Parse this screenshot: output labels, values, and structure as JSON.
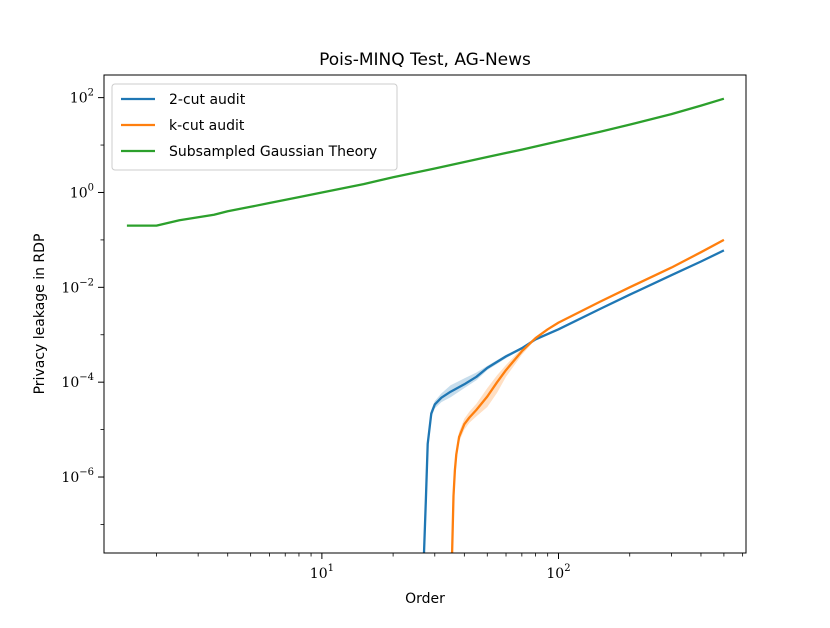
{
  "chart_data": {
    "type": "line",
    "title": "Pois-MINQ Test, AG-News",
    "xlabel": "Order",
    "ylabel": "Privacy leakage in RDP",
    "xscale": "log",
    "yscale": "log",
    "xlim": [
      1.2,
      620
    ],
    "ylim": [
      2.5e-08,
      300
    ],
    "xticks": [
      {
        "value": 10,
        "base": "10",
        "exp": "1"
      },
      {
        "value": 100,
        "base": "10",
        "exp": "2"
      }
    ],
    "yticks": [
      {
        "value": 1e-06,
        "base": "10",
        "exp": "−6"
      },
      {
        "value": 0.0001,
        "base": "10",
        "exp": "−4"
      },
      {
        "value": 0.01,
        "base": "10",
        "exp": "−2"
      },
      {
        "value": 1,
        "base": "10",
        "exp": "0"
      },
      {
        "value": 100,
        "base": "10",
        "exp": "2"
      }
    ],
    "legend_position": "top-left",
    "grid": false,
    "series": [
      {
        "name": "2-cut audit",
        "color": "#1f77b4",
        "x": [
          27,
          27.5,
          28,
          29,
          30,
          32,
          35,
          40,
          45,
          50,
          60,
          70,
          80,
          100,
          150,
          200,
          300,
          400,
          500
        ],
        "y": [
          2.5e-08,
          3e-07,
          5e-06,
          2.2e-05,
          3.4e-05,
          4.7e-05,
          6.3e-05,
          9e-05,
          0.00013,
          0.0002,
          0.00035,
          0.00052,
          0.0008,
          0.0013,
          0.0035,
          0.007,
          0.018,
          0.035,
          0.06
        ],
        "band_lower": [
          2.5e-08,
          2.5e-07,
          4e-06,
          1.8e-05,
          2.8e-05,
          3.8e-05,
          4.8e-05,
          7.5e-05,
          0.00011,
          0.00018,
          0.00032,
          0.00049,
          0.00075,
          0.00123,
          0.00335,
          0.0067,
          0.0173,
          0.0338,
          0.058
        ],
        "band_upper": [
          2.5e-08,
          4e-07,
          6e-06,
          2.6e-05,
          4e-05,
          5.8e-05,
          8.6e-05,
          0.00012,
          0.00016,
          0.00022,
          0.00038,
          0.00055,
          0.00085,
          0.00137,
          0.00365,
          0.0073,
          0.0187,
          0.0362,
          0.062
        ]
      },
      {
        "name": "k-cut audit",
        "color": "#ff7f0e",
        "x": [
          35.5,
          36,
          36.5,
          37,
          38,
          40,
          42,
          45,
          50,
          55,
          60,
          70,
          80,
          90,
          100,
          150,
          200,
          300,
          400,
          500
        ],
        "y": [
          2.5e-08,
          4e-07,
          1.4e-06,
          3e-06,
          7e-06,
          1.3e-05,
          1.8e-05,
          2.6e-05,
          5e-05,
          0.0001,
          0.00018,
          0.00045,
          0.00085,
          0.0013,
          0.0018,
          0.005,
          0.01,
          0.026,
          0.055,
          0.1
        ],
        "band_lower": [
          2.5e-08,
          3e-07,
          1.1e-06,
          2.4e-06,
          5.5e-06,
          1e-05,
          1.4e-05,
          1.9e-05,
          3e-05,
          6e-05,
          0.00013,
          0.00038,
          0.0008,
          0.00123,
          0.0017,
          0.0048,
          0.0097,
          0.0252,
          0.0535,
          0.097
        ],
        "band_upper": [
          2.5e-08,
          5e-07,
          1.8e-06,
          3.8e-06,
          9e-06,
          1.7e-05,
          2.4e-05,
          3.5e-05,
          7.5e-05,
          0.00014,
          0.00023,
          0.00052,
          0.0009,
          0.00137,
          0.0019,
          0.0052,
          0.0103,
          0.0268,
          0.0565,
          0.103
        ]
      },
      {
        "name": "Subsampled Gaussian Theory",
        "color": "#2ca02c",
        "x": [
          1.5,
          2,
          2.5,
          3,
          3.5,
          4,
          4.5,
          5,
          6,
          8,
          10,
          15,
          20,
          30,
          50,
          70,
          100,
          150,
          200,
          300,
          400,
          500
        ],
        "y": [
          0.2,
          0.2,
          0.26,
          0.3,
          0.34,
          0.4,
          0.45,
          0.5,
          0.6,
          0.8,
          1,
          1.5,
          2.1,
          3.2,
          5.6,
          8,
          12,
          19,
          27,
          45,
          68,
          95
        ]
      }
    ]
  }
}
